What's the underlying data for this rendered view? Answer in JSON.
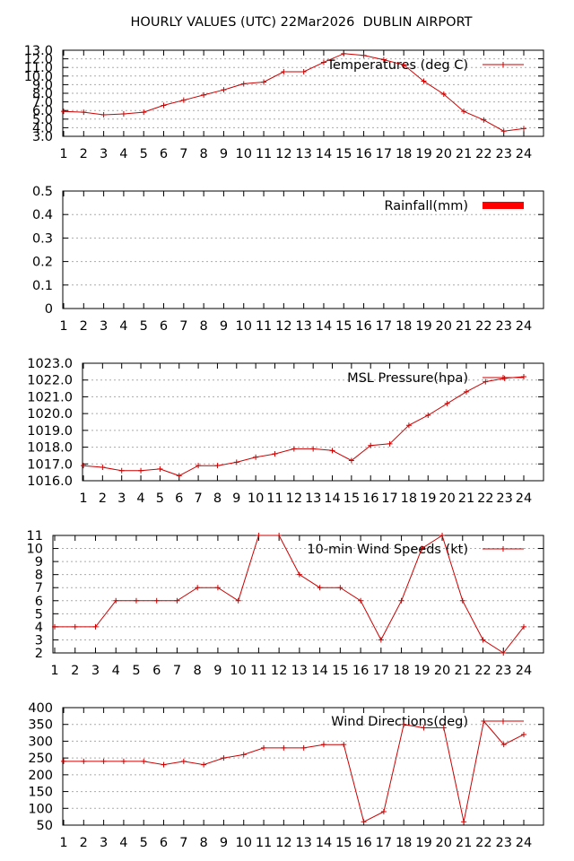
{
  "page": {
    "title": "HOURLY VALUES (UTC) 22Mar2026  DUBLIN AIRPORT"
  },
  "colors": {
    "series": "#cc0000",
    "bar": "#ff0000",
    "grid": "#aaaaaa",
    "axis": "#000000"
  },
  "chart_data": [
    {
      "type": "line",
      "legend": "Temperatures (deg C)",
      "x": [
        1,
        2,
        3,
        4,
        5,
        6,
        7,
        8,
        9,
        10,
        11,
        12,
        13,
        14,
        15,
        16,
        17,
        18,
        19,
        20,
        21,
        22,
        23,
        24
      ],
      "series": [
        {
          "name": "Temperatures (deg C)",
          "values": [
            5.9,
            5.8,
            5.5,
            5.6,
            5.8,
            6.6,
            7.2,
            7.8,
            8.4,
            9.1,
            9.3,
            10.5,
            10.5,
            11.6,
            12.6,
            12.4,
            11.9,
            11.3,
            9.4,
            7.9,
            5.9,
            4.9,
            3.6,
            3.9
          ]
        }
      ],
      "ylim": [
        3.0,
        13.0
      ],
      "yticks": [
        "3.0",
        "4.0",
        "5.0",
        "6.0",
        "7.0",
        "8.0",
        "9.0",
        "10.0",
        "11.0",
        "12.0",
        "13.0"
      ],
      "xticks": [
        "1",
        "2",
        "3",
        "4",
        "5",
        "6",
        "7",
        "8",
        "9",
        "10",
        "11",
        "12",
        "13",
        "14",
        "15",
        "16",
        "17",
        "18",
        "19",
        "20",
        "21",
        "22",
        "23",
        "24"
      ],
      "legend_position": "top-right",
      "grid": true
    },
    {
      "type": "bar",
      "legend": "Rainfall(mm)",
      "x": [
        1,
        2,
        3,
        4,
        5,
        6,
        7,
        8,
        9,
        10,
        11,
        12,
        13,
        14,
        15,
        16,
        17,
        18,
        19,
        20,
        21,
        22,
        23,
        24
      ],
      "series": [
        {
          "name": "Rainfall(mm)",
          "values": [
            0,
            0,
            0,
            0,
            0,
            0,
            0,
            0,
            0,
            0,
            0,
            0,
            0,
            0,
            0,
            0,
            0,
            0,
            0,
            0,
            0,
            0,
            0,
            0
          ]
        }
      ],
      "ylim": [
        0,
        0.5
      ],
      "yticks": [
        "0",
        "0.1",
        "0.2",
        "0.3",
        "0.4",
        "0.5"
      ],
      "xticks": [
        "1",
        "2",
        "3",
        "4",
        "5",
        "6",
        "7",
        "8",
        "9",
        "10",
        "11",
        "12",
        "13",
        "14",
        "15",
        "16",
        "17",
        "18",
        "19",
        "20",
        "21",
        "22",
        "23",
        "24"
      ],
      "legend_position": "top-right",
      "grid": true
    },
    {
      "type": "line",
      "legend": "MSL Pressure(hpa)",
      "x": [
        1,
        2,
        3,
        4,
        5,
        6,
        7,
        8,
        9,
        10,
        11,
        12,
        13,
        14,
        15,
        16,
        17,
        18,
        19,
        20,
        21,
        22,
        23,
        24
      ],
      "series": [
        {
          "name": "MSL Pressure(hpa)",
          "values": [
            1016.9,
            1016.8,
            1016.6,
            1016.6,
            1016.7,
            1016.3,
            1016.9,
            1016.9,
            1017.1,
            1017.4,
            1017.6,
            1017.9,
            1017.9,
            1017.8,
            1017.2,
            1018.1,
            1018.2,
            1019.3,
            1019.9,
            1020.6,
            1021.3,
            1021.9,
            1022.1,
            1022.2
          ]
        }
      ],
      "ylim": [
        1016.0,
        1023.0
      ],
      "yticks": [
        "1016.0",
        "1017.0",
        "1018.0",
        "1019.0",
        "1020.0",
        "1021.0",
        "1022.0",
        "1023.0"
      ],
      "xticks": [
        "1",
        "2",
        "3",
        "4",
        "5",
        "6",
        "7",
        "8",
        "9",
        "10",
        "11",
        "12",
        "13",
        "14",
        "15",
        "16",
        "17",
        "18",
        "19",
        "20",
        "21",
        "22",
        "23",
        "24"
      ],
      "legend_position": "top-right",
      "grid": true
    },
    {
      "type": "line",
      "legend": "10-min Wind Speeds (kt)",
      "x": [
        1,
        2,
        3,
        4,
        5,
        6,
        7,
        8,
        9,
        10,
        11,
        12,
        13,
        14,
        15,
        16,
        17,
        18,
        19,
        20,
        21,
        22,
        23,
        24
      ],
      "series": [
        {
          "name": "10-min Wind Speeds (kt)",
          "values": [
            4,
            4,
            4,
            6,
            6,
            6,
            6,
            7,
            7,
            6,
            11,
            11,
            8,
            7,
            7,
            6,
            3,
            6,
            10,
            11,
            6,
            3,
            2,
            4
          ]
        }
      ],
      "ylim": [
        2,
        11
      ],
      "yticks": [
        "2",
        "3",
        "4",
        "5",
        "6",
        "7",
        "8",
        "9",
        "10",
        "11"
      ],
      "xticks": [
        "1",
        "2",
        "3",
        "4",
        "5",
        "6",
        "7",
        "8",
        "9",
        "10",
        "11",
        "12",
        "13",
        "14",
        "15",
        "16",
        "17",
        "18",
        "19",
        "20",
        "21",
        "22",
        "23",
        "24"
      ],
      "legend_position": "top-right",
      "grid": true
    },
    {
      "type": "line",
      "legend": "Wind Directions(deg)",
      "x": [
        1,
        2,
        3,
        4,
        5,
        6,
        7,
        8,
        9,
        10,
        11,
        12,
        13,
        14,
        15,
        16,
        17,
        18,
        19,
        20,
        21,
        22,
        23,
        24
      ],
      "series": [
        {
          "name": "Wind Directions(deg)",
          "values": [
            240,
            240,
            240,
            240,
            240,
            230,
            240,
            230,
            250,
            260,
            280,
            280,
            280,
            290,
            290,
            60,
            90,
            350,
            340,
            340,
            60,
            360,
            290,
            320
          ]
        }
      ],
      "ylim": [
        50,
        400
      ],
      "yticks": [
        "50",
        "100",
        "150",
        "200",
        "250",
        "300",
        "350",
        "400"
      ],
      "xticks": [
        "1",
        "2",
        "3",
        "4",
        "5",
        "6",
        "7",
        "8",
        "9",
        "10",
        "11",
        "12",
        "13",
        "14",
        "15",
        "16",
        "17",
        "18",
        "19",
        "20",
        "21",
        "22",
        "23",
        "24"
      ],
      "legend_position": "top-right",
      "grid": true
    }
  ]
}
